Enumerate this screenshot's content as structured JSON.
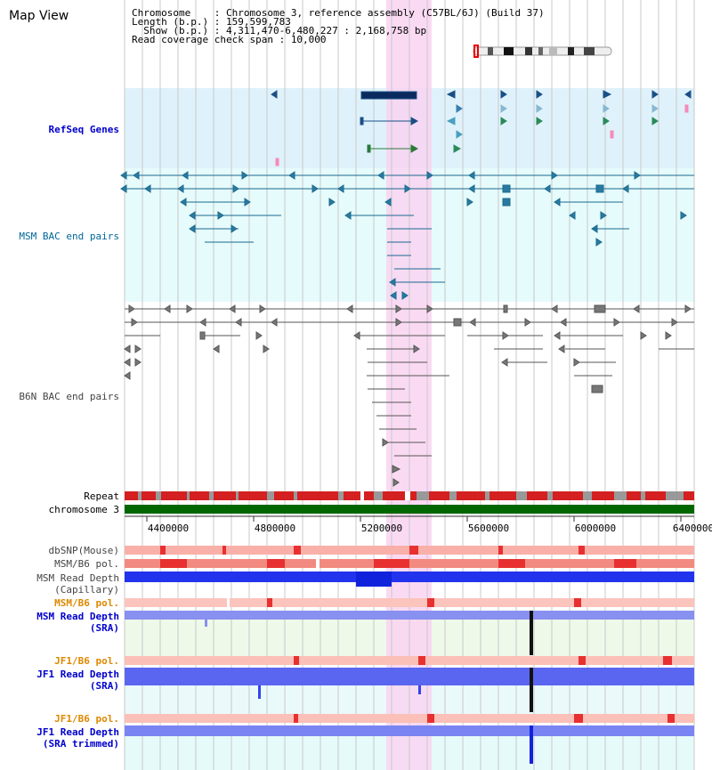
{
  "title": "Map View",
  "info": {
    "chromosome_label": "Chromosome    :",
    "chromosome_value": "Chromosome 3, reference assembly (C57BL/6J) (Build 37)",
    "length_label": "Length (b.p.) :",
    "length_value": "159,599,783",
    "show_label": "  Show (b.p.) :",
    "show_value": "4,311,470-6,480,227 : 2,168,758 bp",
    "span_label": "Read coverage check span :",
    "span_value": "10,000"
  },
  "tracks": {
    "refseq": "RefSeq Genes",
    "msm_bac": "MSM BAC end pairs",
    "b6n_bac": "B6N BAC end pairs",
    "repeat": "Repeat",
    "chromosome": "chromosome 3",
    "dbsnp": "dbSNP(Mouse)",
    "msm_b6_pol": "MSM/B6 pol.",
    "msm_depth_cap_1": "MSM Read Depth",
    "msm_depth_cap_2": "(Capillary)",
    "msm_b6_pol_2": "MSM/B6 pol.",
    "msm_depth_sra_1": "MSM Read Depth",
    "msm_depth_sra_2": "(SRA)",
    "jf1_b6_pol": "JF1/B6 pol.",
    "jf1_depth_sra_1": "JF1 Read Depth",
    "jf1_depth_sra_2": "(SRA)",
    "jf1_b6_pol_2": "JF1/B6 pol.",
    "jf1_depth_trim_1": "JF1 Read Depth",
    "jf1_depth_trim_2": "(SRA trimmed)"
  },
  "axis": [
    "4400000",
    "4800000",
    "5200000",
    "5600000",
    "6000000",
    "6400000"
  ],
  "colors": {
    "refseq_bg": "#dff2fb",
    "msm_bg": "#e3fafa",
    "highlight": "#f9d9f3",
    "chromosome_bar": "#006600",
    "depth_blue": "#2233ee"
  }
}
